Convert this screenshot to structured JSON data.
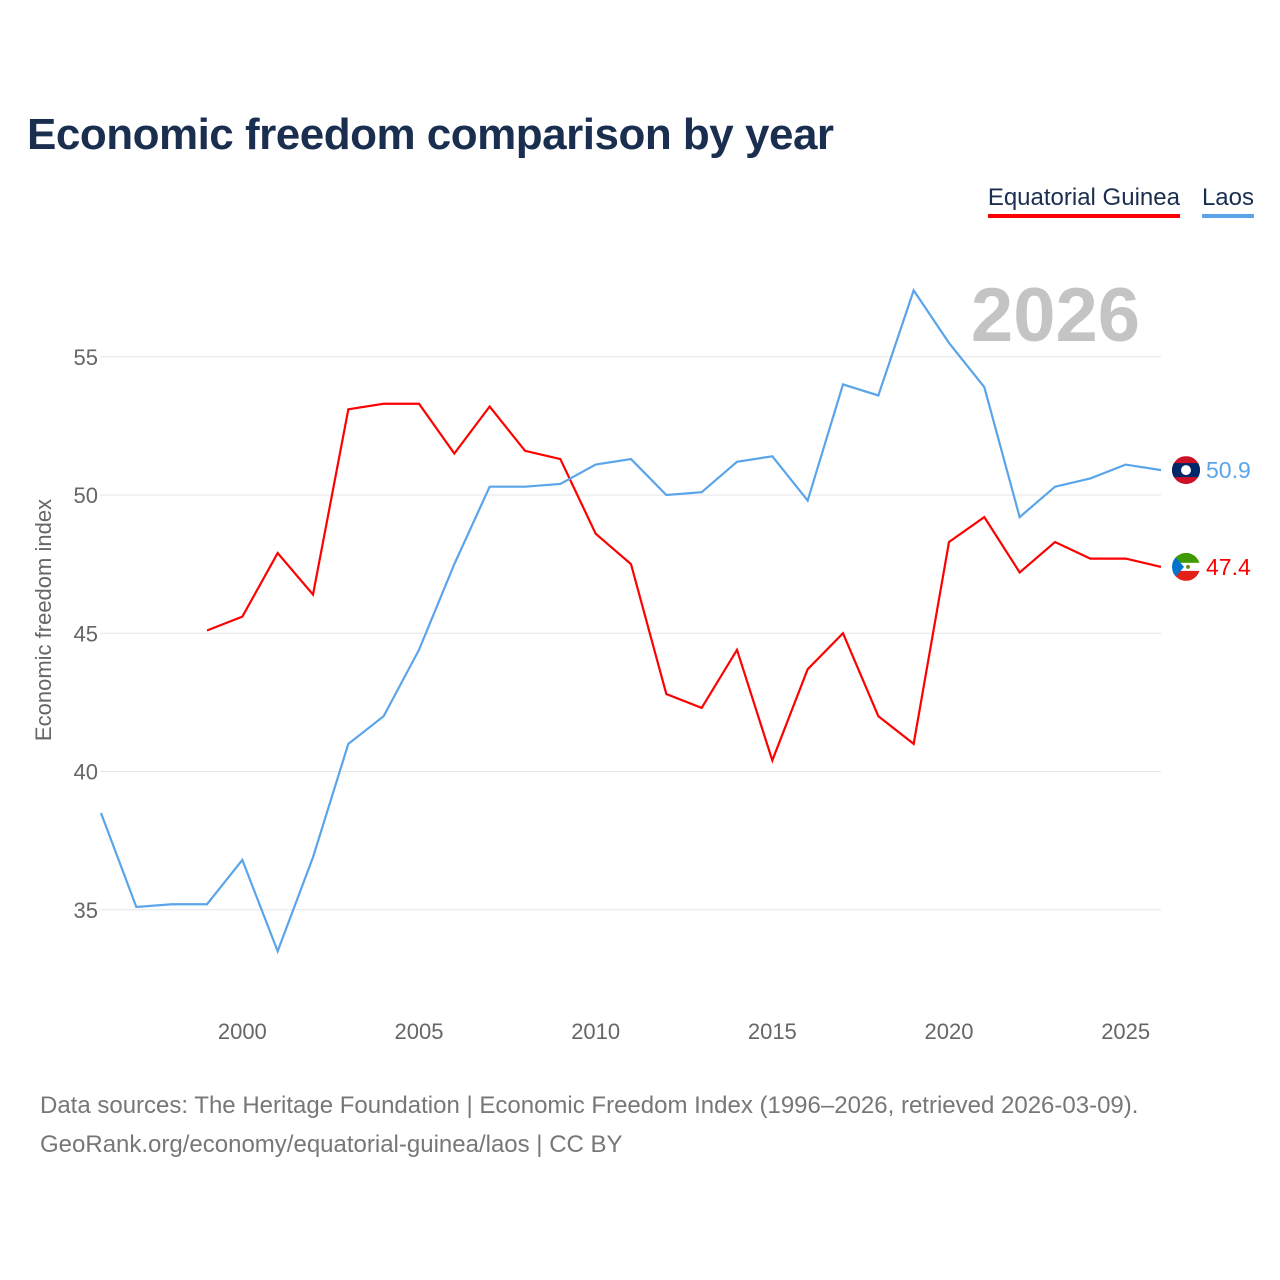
{
  "title": "Economic freedom comparison by year",
  "footer": {
    "line1": "Data sources: The Heritage Foundation | Economic Freedom Index (1996–2026, retrieved 2026-03-09).",
    "line2": "GeoRank.org/economy/equatorial-guinea/laos | CC BY"
  },
  "chart_data": {
    "type": "line",
    "title": "Economic freedom comparison by year",
    "ylabel": "Economic freedom index",
    "xlabel": "",
    "year_watermark": "2026",
    "xlim": [
      1996,
      2026
    ],
    "ylim": [
      31.5,
      59
    ],
    "xticks": [
      "2000",
      "2005",
      "2010",
      "2015",
      "2020",
      "2025"
    ],
    "yticks": [
      "35",
      "40",
      "45",
      "50",
      "55"
    ],
    "grid": true,
    "legend_position": "top-right",
    "series": [
      {
        "name": "Equatorial Guinea",
        "color": "#ff0000",
        "end_label": "47.4",
        "x": [
          1999,
          2000,
          2001,
          2002,
          2003,
          2004,
          2005,
          2006,
          2007,
          2008,
          2009,
          2010,
          2011,
          2012,
          2013,
          2014,
          2015,
          2016,
          2017,
          2018,
          2019,
          2020,
          2021,
          2022,
          2023,
          2024,
          2025,
          2026
        ],
        "values": [
          45.1,
          45.6,
          47.9,
          46.4,
          53.1,
          53.3,
          53.3,
          51.5,
          53.2,
          51.6,
          51.3,
          48.6,
          47.5,
          42.8,
          42.3,
          44.4,
          40.4,
          43.7,
          45.0,
          42.0,
          41.0,
          48.3,
          49.2,
          47.2,
          48.3,
          47.7,
          47.7,
          47.4
        ]
      },
      {
        "name": "Laos",
        "color": "#5aa5ea",
        "end_label": "50.9",
        "x": [
          1996,
          1997,
          1998,
          1999,
          2000,
          2001,
          2002,
          2003,
          2004,
          2005,
          2006,
          2007,
          2008,
          2009,
          2010,
          2011,
          2012,
          2013,
          2014,
          2015,
          2016,
          2017,
          2018,
          2019,
          2020,
          2021,
          2022,
          2023,
          2024,
          2025,
          2026
        ],
        "values": [
          38.5,
          35.1,
          35.2,
          35.2,
          36.8,
          33.5,
          36.9,
          41.0,
          42.0,
          44.4,
          47.5,
          50.3,
          50.3,
          50.4,
          51.1,
          51.3,
          50.0,
          50.1,
          51.2,
          51.4,
          49.8,
          54.0,
          53.6,
          57.4,
          55.5,
          53.9,
          49.2,
          50.3,
          50.6,
          51.1,
          50.9
        ]
      }
    ]
  }
}
